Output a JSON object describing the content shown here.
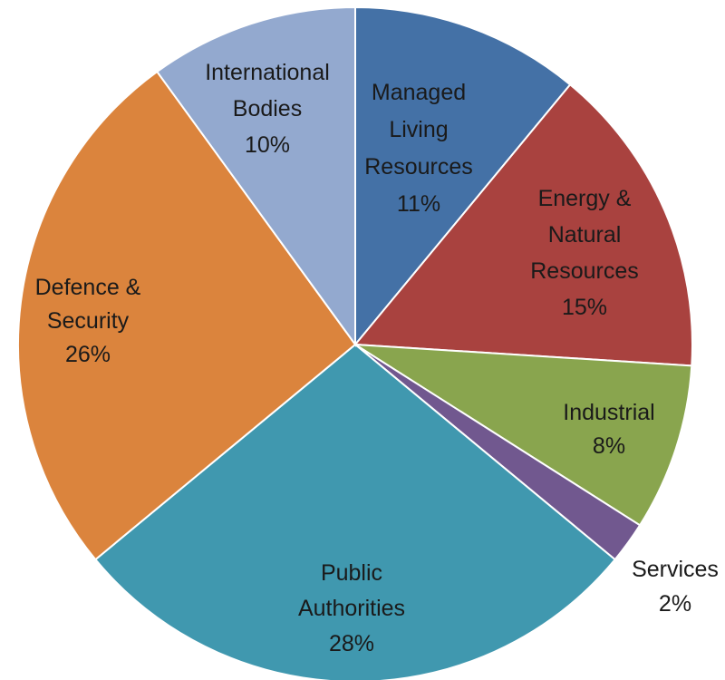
{
  "chart_data": {
    "type": "pie",
    "start_angle_deg": 0,
    "direction": "clockwise",
    "slices": [
      {
        "label": [
          "Managed",
          "Living",
          "Resources"
        ],
        "value": 11,
        "value_label": "11%",
        "color": "#4471a6"
      },
      {
        "label": [
          "Energy &",
          "Natural",
          "Resources"
        ],
        "value": 15,
        "value_label": "15%",
        "color": "#a9423f"
      },
      {
        "label": [
          "Industrial"
        ],
        "value": 8,
        "value_label": "8%",
        "color": "#89a54e"
      },
      {
        "label": [
          "Services"
        ],
        "value": 2,
        "value_label": "2%",
        "color": "#71588f"
      },
      {
        "label": [
          "Public",
          "Authorities"
        ],
        "value": 28,
        "value_label": "28%",
        "color": "#4098af"
      },
      {
        "label": [
          "Defence &",
          "Security"
        ],
        "value": 26,
        "value_label": "26%",
        "color": "#db843d"
      },
      {
        "label": [
          "International",
          "Bodies"
        ],
        "value": 10,
        "value_label": "10%",
        "color": "#93a9cf"
      }
    ]
  }
}
